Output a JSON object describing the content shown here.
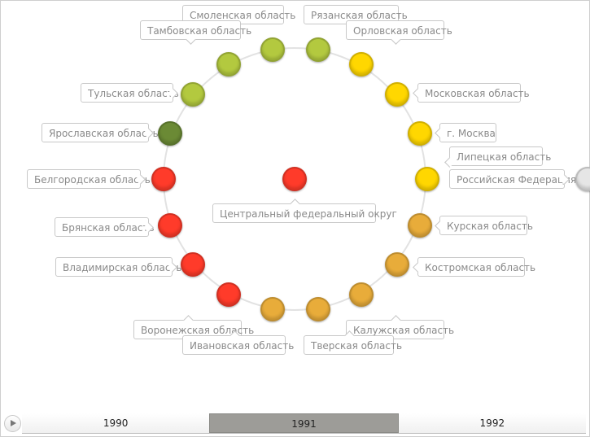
{
  "colors": {
    "light_green": "#b3c93f",
    "dark_green": "#6b8a35",
    "yellow": "#ffd700",
    "orange": "#e8ac3a",
    "red": "#ff3b2a",
    "gray": "#e6e6e6"
  },
  "center": {
    "label": "Центральный федеральный округ",
    "color": "red"
  },
  "regions": [
    {
      "label": "Смоленская область",
      "color": "light_green"
    },
    {
      "label": "Рязанская область",
      "color": "light_green"
    },
    {
      "label": "Тамбовская область",
      "color": "light_green"
    },
    {
      "label": "Орловская область",
      "color": "yellow"
    },
    {
      "label": "Тульская область",
      "color": "light_green"
    },
    {
      "label": "Московская область",
      "color": "yellow"
    },
    {
      "label": "Ярославская область",
      "color": "dark_green"
    },
    {
      "label": "г. Москва",
      "color": "yellow"
    },
    {
      "label": "Белгородская область",
      "color": "red"
    },
    {
      "label": "Липецкая область",
      "color": "yellow"
    },
    {
      "label": "Российская Федерация",
      "color": "gray"
    },
    {
      "label": "Брянская область",
      "color": "red"
    },
    {
      "label": "Курская область",
      "color": "orange"
    },
    {
      "label": "Владимирская область",
      "color": "red"
    },
    {
      "label": "Костромская область",
      "color": "orange"
    },
    {
      "label": "Воронежская область",
      "color": "red"
    },
    {
      "label": "Калужская область",
      "color": "orange"
    },
    {
      "label": "Ивановская область",
      "color": "orange"
    },
    {
      "label": "Тверская область",
      "color": "orange"
    }
  ],
  "timeline": {
    "years": [
      "1990",
      "1991",
      "1992"
    ],
    "selected": "1991",
    "play_icon": "play-icon"
  }
}
